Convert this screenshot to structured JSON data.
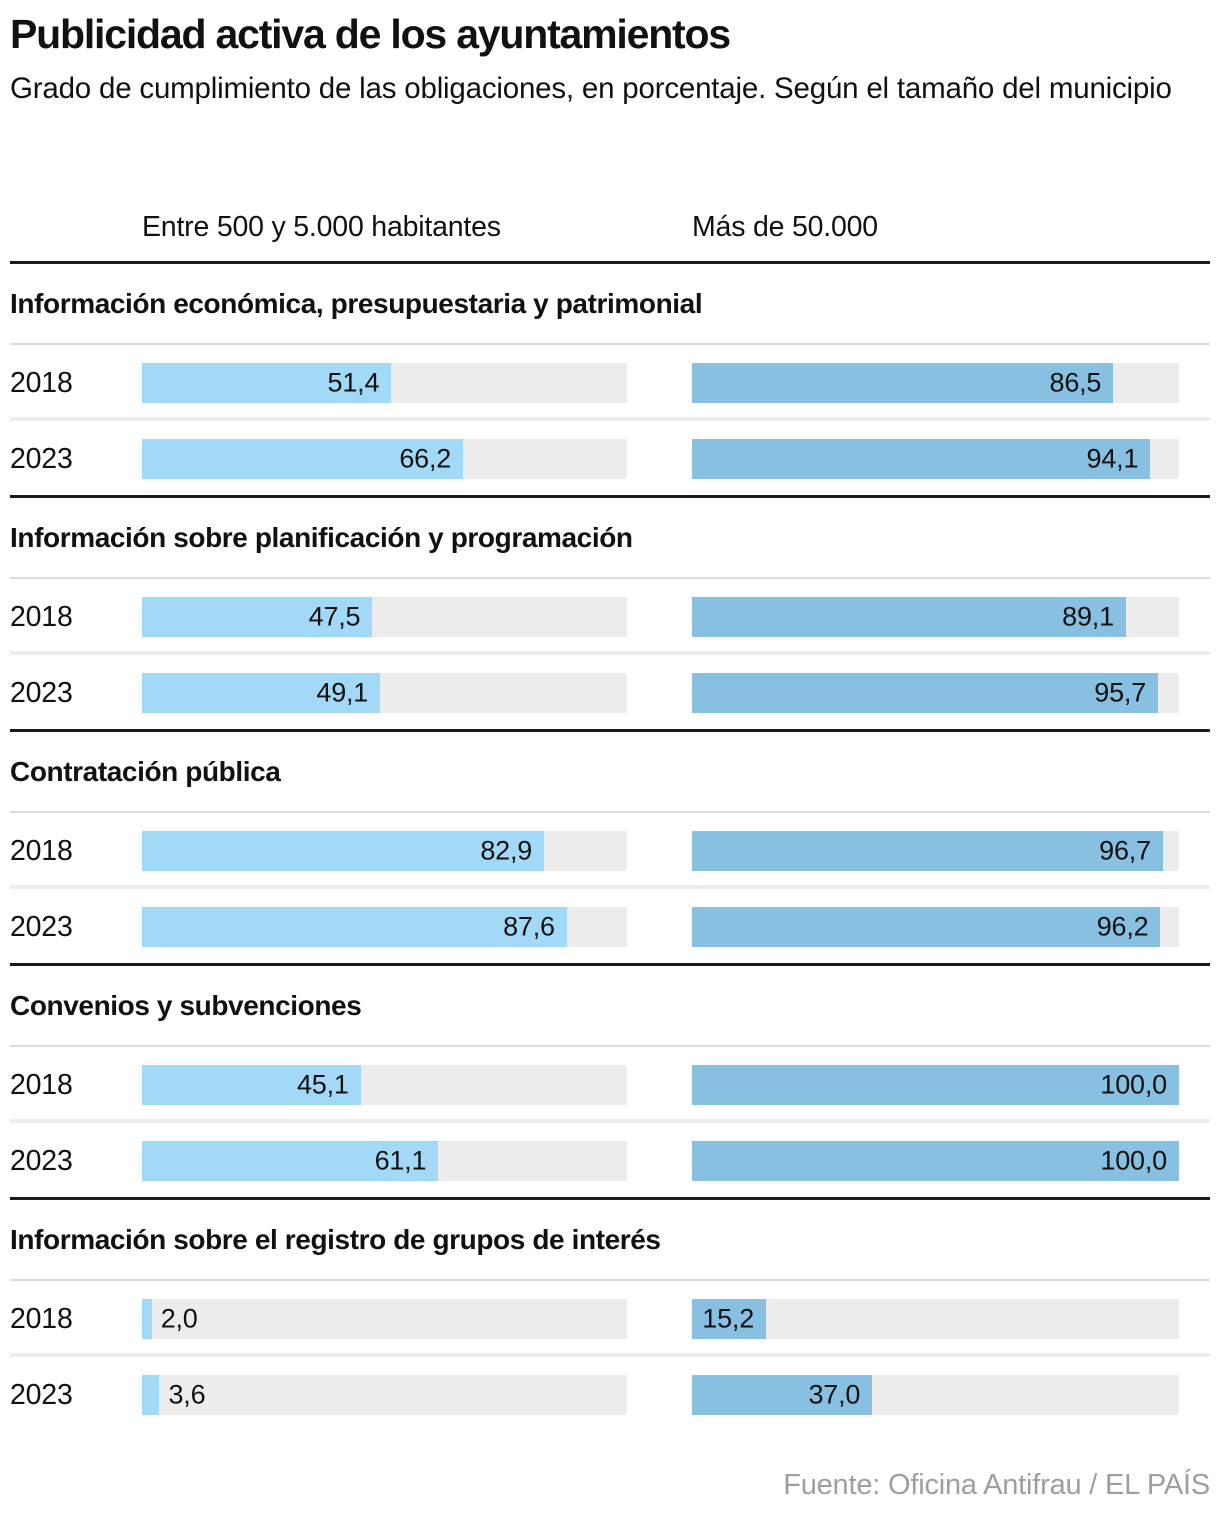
{
  "header": {
    "title": "Publicidad activa de los ayuntamientos",
    "subtitle": "Grado de cumplimiento de las obligaciones, en porcentaje. Según el tamaño del municipio"
  },
  "columns": [
    {
      "label": "Entre 500 y 5.000 habitantes"
    },
    {
      "label": "Más de 50.000"
    }
  ],
  "footer": {
    "source": "Fuente: Oficina Antifrau / EL PAÍS"
  },
  "colors": {
    "small_municipality_bar": "#a2d9f7",
    "large_municipality_bar": "#87c0e0",
    "track": "#ececec",
    "section_rule": "#1a1a1a",
    "light_rule": "#dcdcdc",
    "row_separator": "#ededed",
    "text": "#111111",
    "source_text": "#9e9e9e"
  },
  "chart_data": {
    "type": "bar",
    "orientation": "horizontal",
    "title": "Publicidad activa de los ayuntamientos",
    "subtitle": "Grado de cumplimiento de las obligaciones, en porcentaje. Según el tamaño del municipio",
    "unit": "percent",
    "xlim": [
      0,
      100
    ],
    "grid": false,
    "legend_position": "top-as-column-headers",
    "series": [
      {
        "name": "Entre 500 y 5.000 habitantes",
        "color": "#a2d9f7"
      },
      {
        "name": "Más de 50.000",
        "color": "#87c0e0"
      }
    ],
    "sections": [
      {
        "label": "Información económica, presupuestaria y patrimonial",
        "rows": [
          {
            "year": "2018",
            "values": [
              51.4,
              86.5
            ],
            "display": [
              "51,4",
              "86,5"
            ]
          },
          {
            "year": "2023",
            "values": [
              66.2,
              94.1
            ],
            "display": [
              "66,2",
              "94,1"
            ]
          }
        ]
      },
      {
        "label": "Información sobre planificación y programación",
        "rows": [
          {
            "year": "2018",
            "values": [
              47.5,
              89.1
            ],
            "display": [
              "47,5",
              "89,1"
            ]
          },
          {
            "year": "2023",
            "values": [
              49.1,
              95.7
            ],
            "display": [
              "49,1",
              "95,7"
            ]
          }
        ]
      },
      {
        "label": "Contratación pública",
        "rows": [
          {
            "year": "2018",
            "values": [
              82.9,
              96.7
            ],
            "display": [
              "82,9",
              "96,7"
            ]
          },
          {
            "year": "2023",
            "values": [
              87.6,
              96.2
            ],
            "display": [
              "87,6",
              "96,2"
            ]
          }
        ]
      },
      {
        "label": "Convenios y subvenciones",
        "rows": [
          {
            "year": "2018",
            "values": [
              45.1,
              100.0
            ],
            "display": [
              "45,1",
              "100,0"
            ]
          },
          {
            "year": "2023",
            "values": [
              61.1,
              100.0
            ],
            "display": [
              "61,1",
              "100,0"
            ]
          }
        ]
      },
      {
        "label": "Información sobre el registro de grupos de interés",
        "rows": [
          {
            "year": "2018",
            "values": [
              2.0,
              15.2
            ],
            "display": [
              "2,0",
              "15,2"
            ]
          },
          {
            "year": "2023",
            "values": [
              3.6,
              37.0
            ],
            "display": [
              "3,6",
              "37,0"
            ]
          }
        ]
      }
    ]
  }
}
